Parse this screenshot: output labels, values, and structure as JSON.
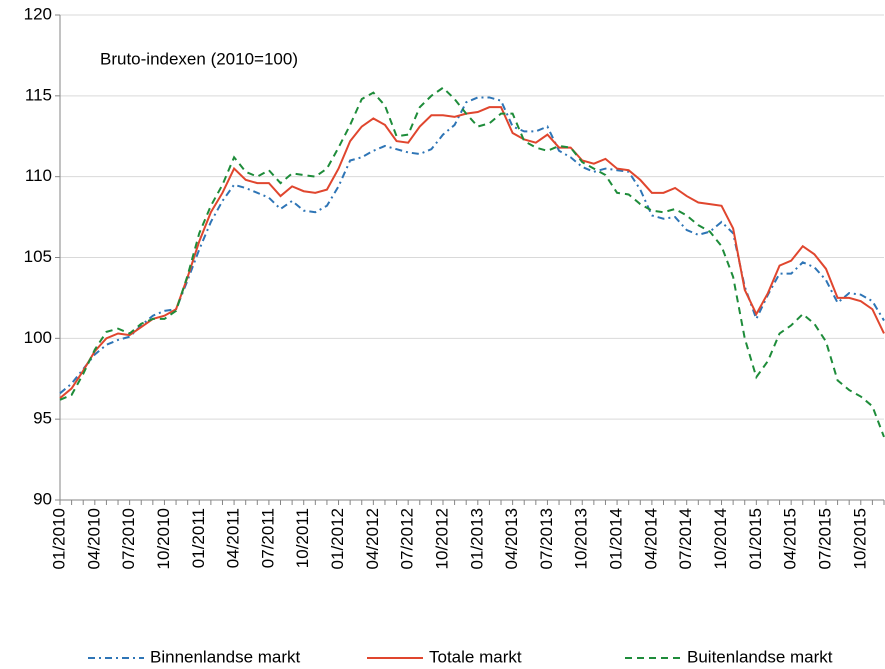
{
  "chart_data": {
    "type": "line",
    "annotation": "Bruto-indexen (2010=100)",
    "categories": [
      "01/2010",
      null,
      null,
      "04/2010",
      null,
      null,
      "07/2010",
      null,
      null,
      "10/2010",
      null,
      null,
      "01/2011",
      null,
      null,
      "04/2011",
      null,
      null,
      "07/2011",
      null,
      null,
      "10/2011",
      null,
      null,
      "01/2012",
      null,
      null,
      "04/2012",
      null,
      null,
      "07/2012",
      null,
      null,
      "10/2012",
      null,
      null,
      "01/2013",
      null,
      null,
      "04/2013",
      null,
      null,
      "07/2013",
      null,
      null,
      "10/2013",
      null,
      null,
      "01/2014",
      null,
      null,
      "04/2014",
      null,
      null,
      "07/2014",
      null,
      null,
      "10/2014",
      null,
      null,
      "01/2015",
      null,
      null,
      "04/2015",
      null,
      null,
      "07/2015",
      null,
      null,
      "10/2015",
      null,
      null
    ],
    "series": [
      {
        "name": "Binnenlandse markt",
        "color": "#2e75b6",
        "style": "dash-dot",
        "values": [
          96.6,
          97.2,
          98.1,
          99.0,
          99.6,
          99.9,
          100.1,
          100.8,
          101.4,
          101.7,
          101.8,
          103.6,
          105.5,
          107.2,
          108.5,
          109.5,
          109.3,
          109.0,
          108.7,
          108.0,
          108.5,
          107.9,
          107.8,
          108.2,
          109.4,
          111.0,
          111.2,
          111.6,
          111.9,
          111.7,
          111.5,
          111.4,
          111.7,
          112.6,
          113.2,
          114.6,
          114.9,
          114.9,
          114.7,
          113.1,
          112.8,
          112.8,
          113.1,
          111.6,
          111.2,
          110.6,
          110.3,
          110.5,
          110.4,
          110.3,
          109.2,
          107.6,
          107.4,
          107.5,
          106.7,
          106.4,
          106.6,
          107.2,
          106.5,
          103.2,
          101.2,
          102.7,
          104.0,
          104.0,
          104.7,
          104.4,
          103.6,
          102.2,
          102.8,
          102.7,
          102.3,
          101.1
        ]
      },
      {
        "name": "Totale markt",
        "color": "#e0462e",
        "style": "solid",
        "values": [
          96.3,
          96.9,
          98.0,
          99.2,
          100.0,
          100.3,
          100.2,
          100.7,
          101.2,
          101.4,
          101.8,
          103.8,
          106.0,
          107.8,
          109.0,
          110.5,
          109.8,
          109.6,
          109.6,
          108.8,
          109.4,
          109.1,
          109.0,
          109.2,
          110.5,
          112.2,
          113.1,
          113.6,
          113.2,
          112.2,
          112.1,
          113.1,
          113.8,
          113.8,
          113.7,
          113.9,
          114.0,
          114.3,
          114.3,
          112.7,
          112.3,
          112.1,
          112.6,
          111.8,
          111.8,
          111.0,
          110.8,
          111.1,
          110.5,
          110.4,
          109.8,
          109.0,
          109.0,
          109.3,
          108.8,
          108.4,
          108.3,
          108.2,
          106.8,
          103.0,
          101.5,
          102.8,
          104.5,
          104.8,
          105.7,
          105.2,
          104.3,
          102.5,
          102.5,
          102.3,
          101.8,
          100.3
        ]
      },
      {
        "name": "Buitenlandse markt",
        "color": "#1e8c3a",
        "style": "dashed",
        "values": [
          96.2,
          96.5,
          97.8,
          99.3,
          100.4,
          100.6,
          100.3,
          100.9,
          101.2,
          101.2,
          101.7,
          103.9,
          106.5,
          108.2,
          109.5,
          111.2,
          110.3,
          110.0,
          110.4,
          109.6,
          110.2,
          110.1,
          110.0,
          110.5,
          111.8,
          113.2,
          114.8,
          115.2,
          114.4,
          112.5,
          112.6,
          114.3,
          115.0,
          115.5,
          114.8,
          113.9,
          113.1,
          113.3,
          113.9,
          113.9,
          112.2,
          111.8,
          111.6,
          111.9,
          111.8,
          110.9,
          110.5,
          110.1,
          109.0,
          108.9,
          108.3,
          107.9,
          107.8,
          108.0,
          107.6,
          107.0,
          106.6,
          105.7,
          103.8,
          100.0,
          97.6,
          98.6,
          100.3,
          100.8,
          101.5,
          100.9,
          99.8,
          97.4,
          96.8,
          96.4,
          95.8,
          93.9
        ]
      }
    ],
    "ylim": [
      90,
      120
    ],
    "yticks": [
      90,
      95,
      100,
      105,
      110,
      115,
      120
    ],
    "grid": true,
    "legend": "bottom"
  }
}
